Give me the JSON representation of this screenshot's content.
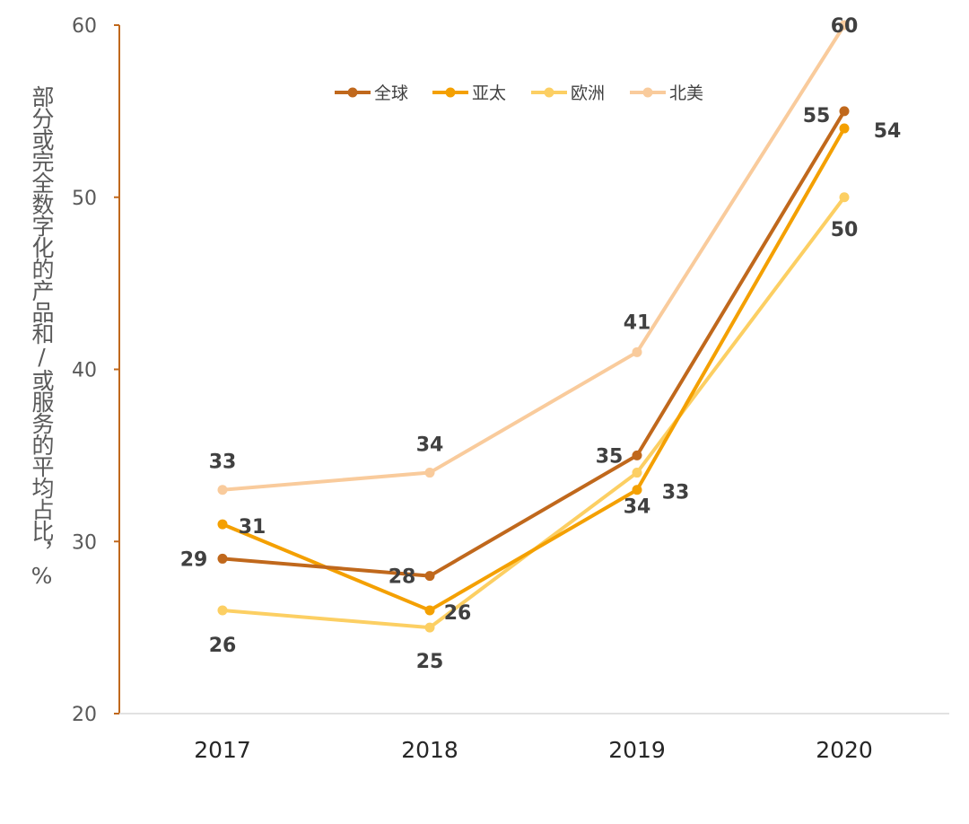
{
  "chart_data": {
    "type": "line",
    "ylabel": "部分或完全数字化的产品和/或服务的平均占比，%",
    "xlabel": "",
    "categories": [
      "2017",
      "2018",
      "2019",
      "2020"
    ],
    "ylim": [
      20,
      60
    ],
    "yticks": [
      "20",
      "30",
      "40",
      "50",
      "60"
    ],
    "grid": false,
    "legend_position": "top-center",
    "series": [
      {
        "name": "全球",
        "color": "#C0681C",
        "values": [
          29,
          28,
          35,
          55
        ]
      },
      {
        "name": "亚太",
        "color": "#F4A001",
        "values": [
          31,
          26,
          33,
          54
        ]
      },
      {
        "name": "欧洲",
        "color": "#FCCF63",
        "values": [
          26,
          25,
          34,
          50
        ]
      },
      {
        "name": "北美",
        "color": "#F9CB9C",
        "values": [
          33,
          34,
          41,
          60
        ]
      }
    ]
  },
  "axis_color": "#C0681C"
}
